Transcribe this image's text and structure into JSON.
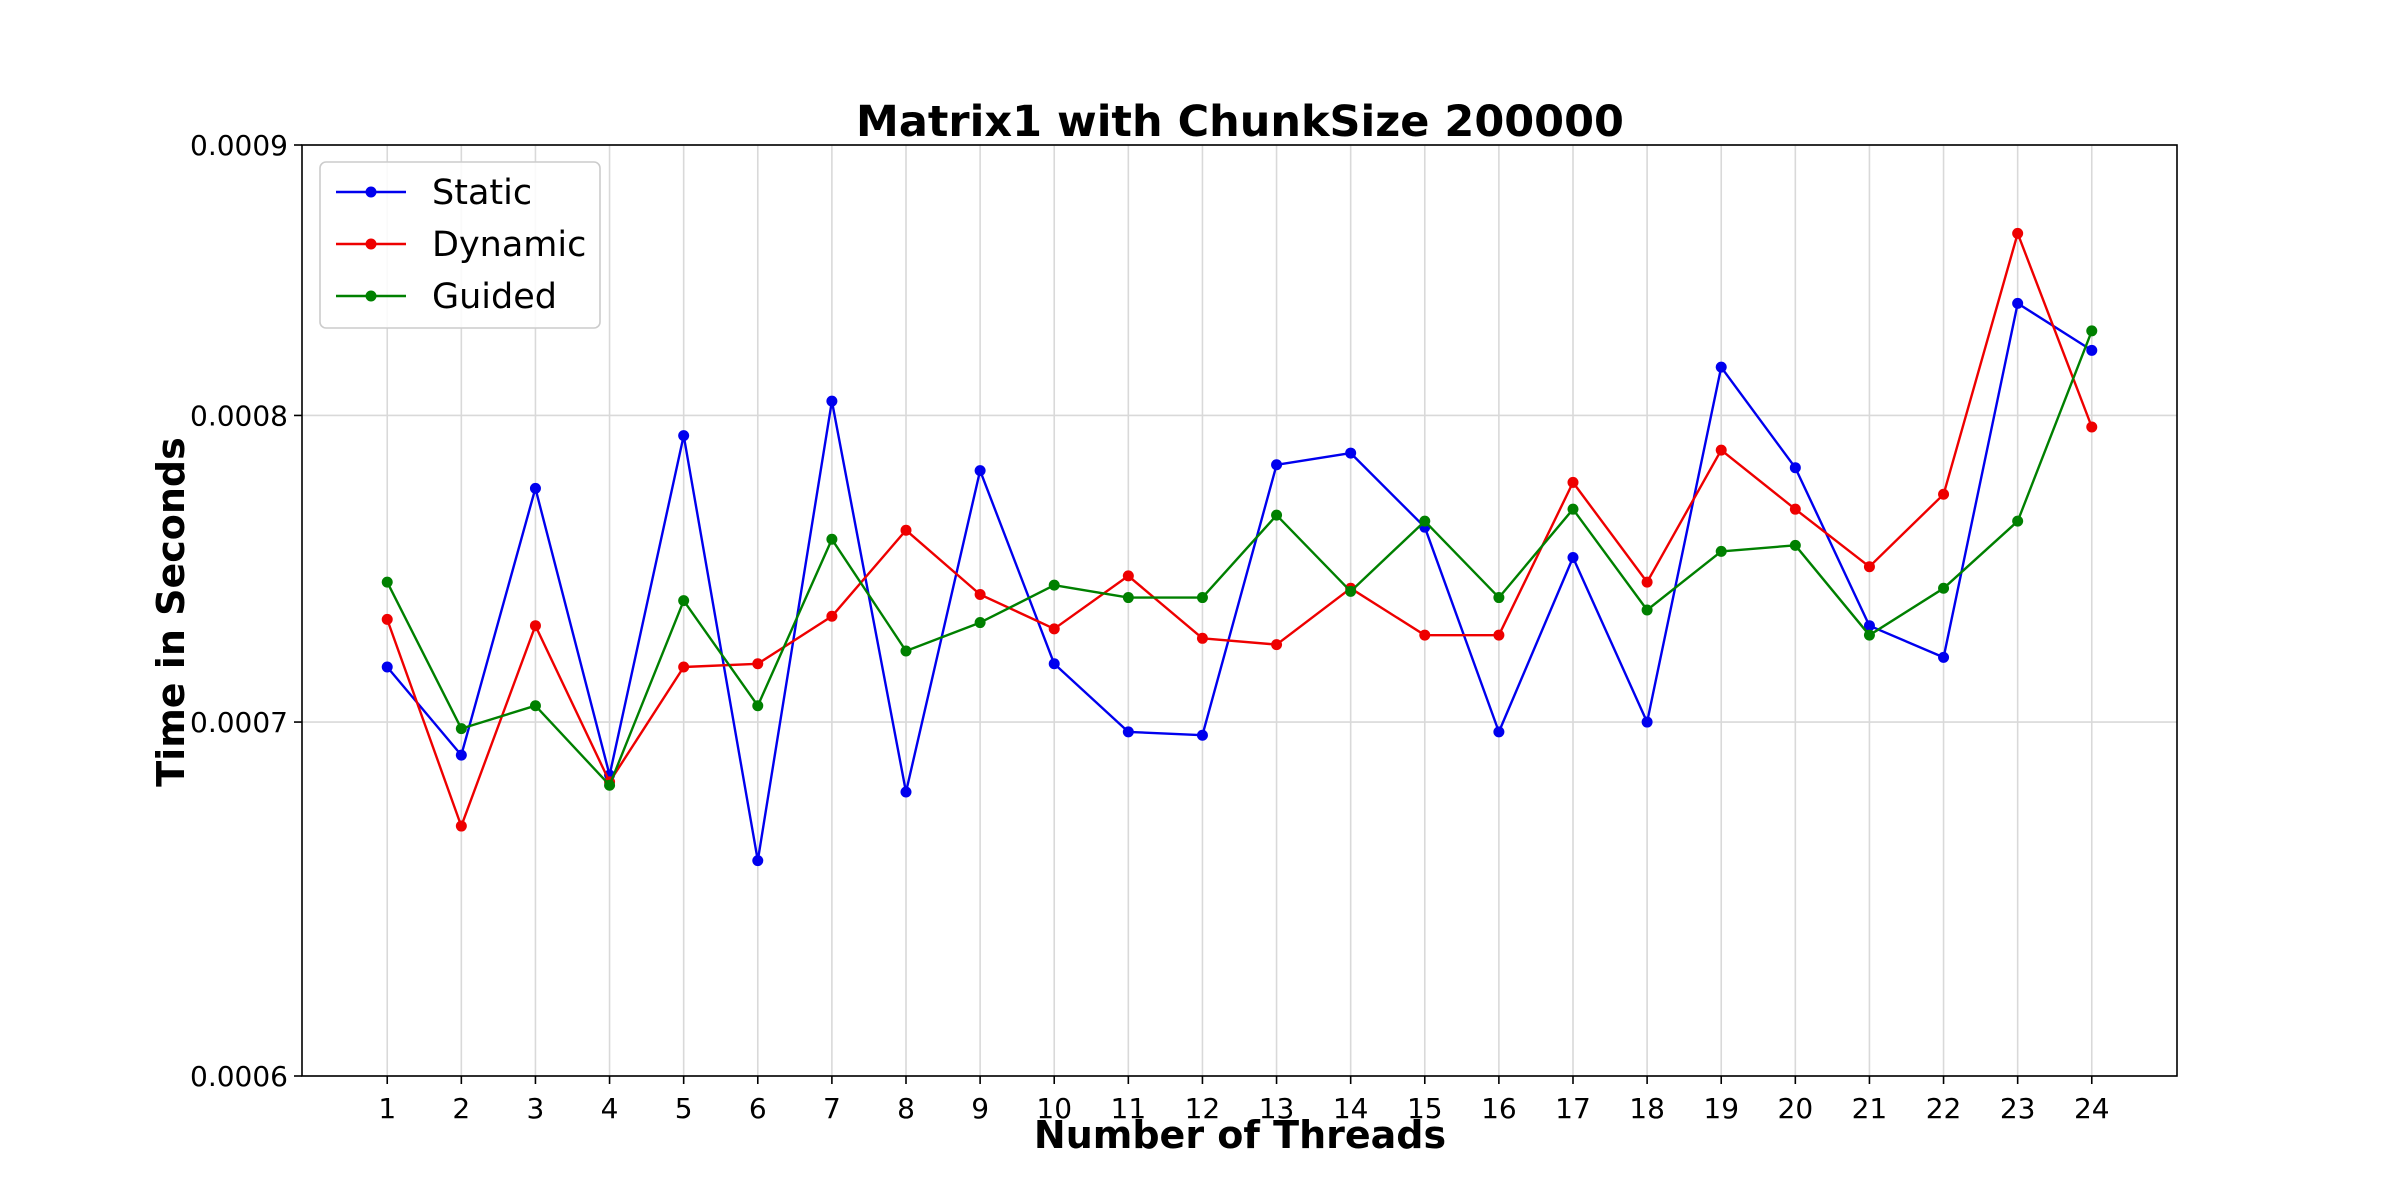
{
  "chart_data": {
    "type": "line",
    "title": "Matrix1 with ChunkSize 200000",
    "xlabel": "Number of Threads",
    "ylabel": "Time in Seconds",
    "x": [
      1,
      2,
      3,
      4,
      5,
      6,
      7,
      8,
      9,
      10,
      11,
      12,
      13,
      14,
      15,
      16,
      17,
      18,
      19,
      20,
      21,
      22,
      23,
      24
    ],
    "x_tick_labels": [
      "1",
      "2",
      "3",
      "4",
      "5",
      "6",
      "7",
      "8",
      "9",
      "10",
      "11",
      "12",
      "13",
      "14",
      "15",
      "16",
      "17",
      "18",
      "19",
      "20",
      "21",
      "22",
      "23",
      "24"
    ],
    "xlim": [
      -0.15,
      25.15
    ],
    "yscale": "log",
    "ylim": [
      0.0006,
      0.0009
    ],
    "y_ticks": [
      0.0006,
      0.0007,
      0.0008,
      0.0009
    ],
    "y_tick_labels": [
      "0.0006",
      "0.0007",
      "0.0008",
      "0.0009"
    ],
    "grid": true,
    "legend_position": "top-left",
    "series": [
      {
        "name": "Static",
        "color": "#0000ee",
        "values": [
          0.000717,
          0.00069,
          0.000775,
          0.000684,
          0.000793,
          0.000659,
          0.000805,
          0.000679,
          0.000781,
          0.000718,
          0.000697,
          0.000696,
          0.000783,
          0.000787,
          0.000762,
          0.000697,
          0.000752,
          0.0007,
          0.000817,
          0.000782,
          0.00073,
          0.00072,
          0.00084,
          0.000823
        ]
      },
      {
        "name": "Dynamic",
        "color": "#ee0000",
        "values": [
          0.000732,
          0.000669,
          0.00073,
          0.000682,
          0.000717,
          0.000718,
          0.000733,
          0.000761,
          0.00074,
          0.000729,
          0.000746,
          0.000726,
          0.000724,
          0.000742,
          0.000727,
          0.000727,
          0.000777,
          0.000744,
          0.000788,
          0.000768,
          0.000749,
          0.000773,
          0.000866,
          0.000796
        ]
      },
      {
        "name": "Guided",
        "color": "#008000",
        "values": [
          0.000744,
          0.000698,
          0.000705,
          0.000681,
          0.000738,
          0.000705,
          0.000758,
          0.000722,
          0.000731,
          0.000743,
          0.000739,
          0.000739,
          0.000766,
          0.000741,
          0.000764,
          0.000739,
          0.000768,
          0.000735,
          0.000754,
          0.000756,
          0.000727,
          0.000742,
          0.000764,
          0.00083
        ]
      }
    ]
  }
}
